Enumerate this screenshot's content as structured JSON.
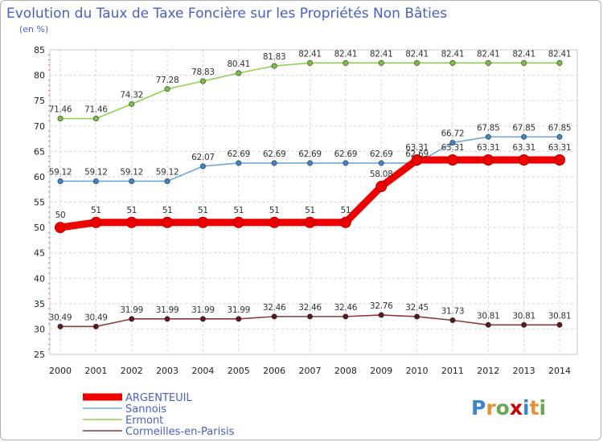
{
  "chart_data": {
    "type": "line",
    "title": "Evolution du Taux de Taxe Foncière sur les Propriétés Non Bâties",
    "subtitle": "(en %)",
    "categories": [
      "2000",
      "2001",
      "2002",
      "2003",
      "2004",
      "2005",
      "2006",
      "2007",
      "2008",
      "2009",
      "2010",
      "2011",
      "2012",
      "2013",
      "2014"
    ],
    "ylim": [
      25,
      85
    ],
    "yticks": [
      "25",
      "30",
      "35",
      "40",
      "45",
      "50",
      "55",
      "60",
      "65",
      "70",
      "75",
      "80",
      "85"
    ],
    "grid": true,
    "series": [
      {
        "name": "Ermont",
        "color": "#92d050",
        "marker": "#7ac142",
        "values": [
          71.46,
          71.46,
          74.32,
          77.28,
          78.83,
          80.41,
          81.83,
          82.41,
          82.41,
          82.41,
          82.41,
          82.41,
          82.41,
          82.41,
          82.41
        ],
        "labels": [
          "71.46",
          "71.46",
          "74.32",
          "77.28",
          "78.83",
          "80.41",
          "81.83",
          "82.41",
          "82.41",
          "82.41",
          "82.41",
          "82.41",
          "82.41",
          "82.41",
          "82.41"
        ]
      },
      {
        "name": "Sannois",
        "color": "#6fa8dc",
        "marker": "#3d85c6",
        "values": [
          59.12,
          59.12,
          59.12,
          59.12,
          62.07,
          62.69,
          62.69,
          62.69,
          62.69,
          62.69,
          62.69,
          66.72,
          67.85,
          67.85,
          67.85
        ],
        "labels": [
          "59.12",
          "59.12",
          "59.12",
          "59.12",
          "62.07",
          "62.69",
          "62.69",
          "62.69",
          "62.69",
          "62.69",
          "62.69",
          "66.72",
          "67.85",
          "67.85",
          "67.85"
        ]
      },
      {
        "name": "ARGENTEUIL",
        "color": "#ee0000",
        "marker": "#ee0000",
        "values": [
          50,
          51,
          51,
          51,
          51,
          51,
          51,
          51,
          51,
          58.08,
          63.31,
          63.31,
          63.31,
          63.31,
          63.31
        ],
        "labels": [
          "50",
          "51",
          "51",
          "51",
          "51",
          "51",
          "51",
          "51",
          "51",
          "58.08",
          "63.31",
          "63.31",
          "63.31",
          "63.31",
          "63.31"
        ]
      },
      {
        "name": "Cormeilles-en-Parisis",
        "color": "#8b3a3a",
        "marker": "#5a1a1a",
        "values": [
          30.49,
          30.49,
          31.99,
          31.99,
          31.99,
          31.99,
          32.46,
          32.46,
          32.46,
          32.76,
          32.45,
          31.73,
          30.81,
          30.81,
          30.81
        ],
        "labels": [
          "30.49",
          "30.49",
          "31.99",
          "31.99",
          "31.99",
          "31.99",
          "32.46",
          "32.46",
          "32.46",
          "32.76",
          "32.45",
          "31.73",
          "30.81",
          "30.81",
          "30.81"
        ]
      }
    ],
    "legend": [
      "ARGENTEUIL",
      "Sannois",
      "Ermont",
      "Cormeilles-en-Parisis"
    ],
    "legend_position": "bottom-left"
  },
  "logo": {
    "text": "Proxiti",
    "letters": [
      "P",
      "r",
      "o",
      "x",
      "i",
      "t",
      "i"
    ],
    "colors": [
      "#3d85c6",
      "#e69138",
      "#6aa84f",
      "#cc0000",
      "#3d85c6",
      "#e69138",
      "#6aa84f"
    ]
  }
}
